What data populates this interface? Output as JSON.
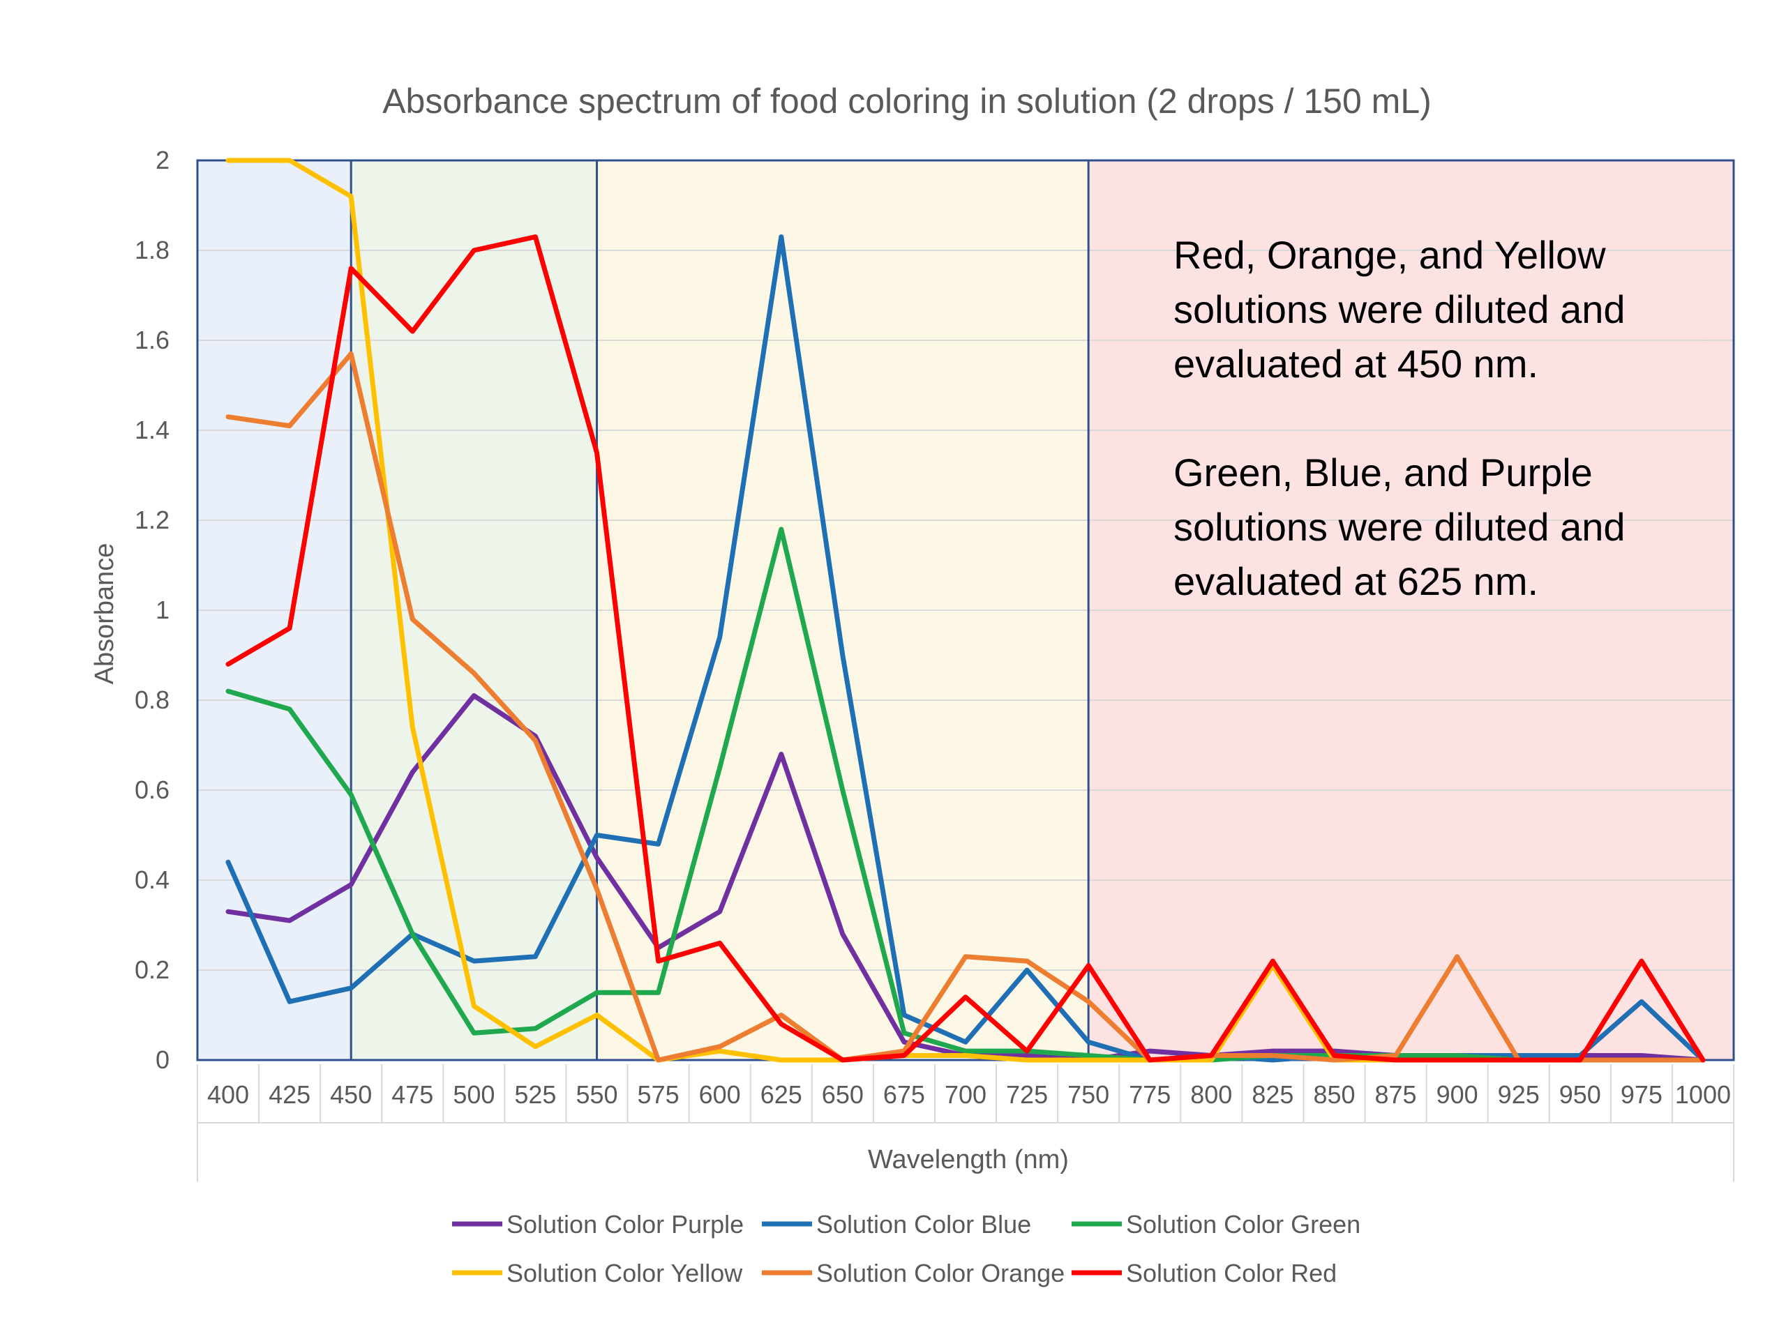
{
  "chart_data": {
    "type": "line",
    "title": "Absorbance spectrum of food coloring in solution (2 drops / 150 mL)",
    "xlabel": "Wavelength (nm)",
    "ylabel": "Absorbance",
    "ylim": [
      0,
      2
    ],
    "yticks": [
      "0",
      "0.2",
      "0.4",
      "0.6",
      "0.8",
      "1",
      "1.2",
      "1.4",
      "1.6",
      "1.8",
      "2"
    ],
    "categories": [
      "400",
      "425",
      "450",
      "475",
      "500",
      "525",
      "550",
      "575",
      "600",
      "625",
      "650",
      "675",
      "700",
      "725",
      "750",
      "775",
      "800",
      "825",
      "850",
      "875",
      "900",
      "925",
      "950",
      "975",
      "1000"
    ],
    "grid": true,
    "legend": "bottom",
    "regions": [
      {
        "from": "400",
        "to": "450",
        "color": "#eaf0f9"
      },
      {
        "from": "450",
        "to": "550",
        "color": "#edf4e9"
      },
      {
        "from": "550",
        "to": "750",
        "color": "#fdf7e6"
      },
      {
        "from": "750",
        "to": "1000",
        "color": "#fde2e2"
      }
    ],
    "series": [
      {
        "name": "Solution Color Purple",
        "color": "#7030a0",
        "values": [
          0.33,
          0.31,
          0.39,
          0.64,
          0.81,
          0.72,
          0.45,
          0.25,
          0.33,
          0.68,
          0.28,
          0.04,
          0.01,
          0.01,
          0.0,
          0.02,
          0.01,
          0.02,
          0.02,
          0.01,
          0.0,
          0.01,
          0.01,
          0.01,
          0.0
        ]
      },
      {
        "name": "Solution Color Blue",
        "color": "#1f6fb4",
        "values": [
          0.44,
          0.13,
          0.16,
          0.28,
          0.22,
          0.23,
          0.5,
          0.48,
          0.94,
          1.83,
          0.9,
          0.1,
          0.04,
          0.2,
          0.04,
          0.0,
          0.01,
          0.0,
          0.01,
          0.01,
          0.01,
          0.01,
          0.01,
          0.13,
          0.0
        ]
      },
      {
        "name": "Solution Color Green",
        "color": "#1fa84d",
        "values": [
          0.82,
          0.78,
          0.59,
          0.28,
          0.06,
          0.07,
          0.15,
          0.15,
          0.65,
          1.18,
          0.6,
          0.06,
          0.02,
          0.02,
          0.01,
          0.0,
          0.0,
          0.01,
          0.01,
          0.01,
          0.01,
          0.0,
          0.0,
          0.0,
          0.0
        ]
      },
      {
        "name": "Solution Color Yellow",
        "color": "#ffc000",
        "values": [
          2.0,
          2.0,
          1.92,
          0.74,
          0.12,
          0.03,
          0.1,
          0.0,
          0.02,
          0.0,
          0.0,
          0.01,
          0.01,
          0.0,
          0.0,
          0.0,
          0.0,
          0.21,
          0.0,
          0.0,
          0.0,
          0.0,
          0.0,
          0.0,
          0.0
        ]
      },
      {
        "name": "Solution Color Orange",
        "color": "#ed7d31",
        "values": [
          1.43,
          1.41,
          1.57,
          0.98,
          0.86,
          0.71,
          0.38,
          0.0,
          0.03,
          0.1,
          0.0,
          0.02,
          0.23,
          0.22,
          0.13,
          0.0,
          0.01,
          0.01,
          0.0,
          0.01,
          0.23,
          0.0,
          0.0,
          0.0,
          0.0
        ]
      },
      {
        "name": "Solution Color Red",
        "color": "#ff0000",
        "values": [
          0.88,
          0.96,
          1.76,
          1.62,
          1.8,
          1.83,
          1.35,
          0.22,
          0.26,
          0.08,
          0.0,
          0.01,
          0.14,
          0.02,
          0.21,
          0.0,
          0.01,
          0.22,
          0.01,
          0.0,
          0.0,
          0.0,
          0.0,
          0.22,
          0.0
        ]
      }
    ],
    "annotations": [
      {
        "lines": [
          "Red, Orange, and Yellow",
          "solutions were diluted and",
          "evaluated at 450 nm."
        ]
      },
      {
        "lines": [
          "Green, Blue, and Purple",
          "solutions were diluted and",
          "evaluated at 625 nm."
        ]
      }
    ]
  }
}
